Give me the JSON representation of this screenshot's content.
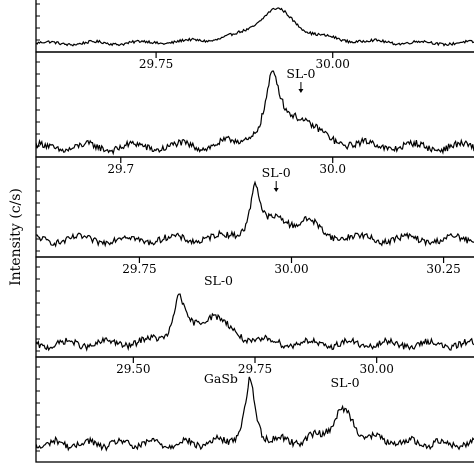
{
  "chart_data": [
    {
      "type": "line",
      "x_ticks": [],
      "peaks": [
        {
          "x": 29.92,
          "height": 0.9,
          "width": 0.035
        }
      ],
      "annotations": [],
      "noise": 0.035,
      "background": 0.06
    },
    {
      "type": "line",
      "x_ticks": [
        {
          "value": 29.75,
          "label": "29.75"
        },
        {
          "value": 30.0,
          "label": "30.00"
        }
      ],
      "xlim": [
        29.58,
        30.2
      ],
      "peaks": [
        {
          "x": 29.915,
          "height": 0.72,
          "width": 0.012
        },
        {
          "x": 29.95,
          "height": 0.32,
          "width": 0.03
        }
      ],
      "annotations": [
        {
          "x": 29.955,
          "label": "SL-0",
          "arrow": true
        }
      ],
      "noise": 0.04,
      "background": 0.04
    },
    {
      "type": "line",
      "x_ticks": [
        {
          "value": 29.7,
          "label": "29.7"
        },
        {
          "value": 30.0,
          "label": "30.0"
        }
      ],
      "xlim": [
        29.58,
        30.2
      ],
      "peaks": [
        {
          "x": 29.89,
          "height": 0.65,
          "width": 0.008
        },
        {
          "x": 29.925,
          "height": 0.22,
          "width": 0.02
        },
        {
          "x": 29.965,
          "height": 0.18,
          "width": 0.02
        }
      ],
      "annotations": [
        {
          "x": 29.92,
          "label": "SL-0",
          "arrow": true
        }
      ],
      "noise": 0.04,
      "background": 0.14
    },
    {
      "type": "line",
      "x_ticks": [
        {
          "value": 29.75,
          "label": "29.75"
        },
        {
          "value": 30.0,
          "label": "30.00"
        },
        {
          "value": 30.25,
          "label": "30.25"
        }
      ],
      "xlim": [
        29.58,
        30.3
      ],
      "peaks": [
        {
          "x": 29.815,
          "height": 0.55,
          "width": 0.01
        },
        {
          "x": 29.87,
          "height": 0.36,
          "width": 0.03
        }
      ],
      "annotations": [
        {
          "x": 29.88,
          "label": "SL-0",
          "arrow": false
        }
      ],
      "noise": 0.04,
      "background": 0.08
    },
    {
      "type": "line",
      "x_ticks": [
        {
          "value": 29.5,
          "label": "29.50"
        },
        {
          "value": 29.75,
          "label": "29.75"
        },
        {
          "value": 30.0,
          "label": "30.00"
        }
      ],
      "xlim": [
        29.3,
        30.2
      ],
      "peaks": [
        {
          "x": 29.74,
          "height": 0.72,
          "width": 0.012
        },
        {
          "x": 29.93,
          "height": 0.38,
          "width": 0.03
        }
      ],
      "annotations": [
        {
          "x": 29.68,
          "label": "GaSb",
          "arrow": false
        },
        {
          "x": 29.935,
          "label": "SL-0",
          "arrow": false
        }
      ],
      "noise": 0.04,
      "background": 0.14
    }
  ],
  "ylabel": "Intensity (c/s)"
}
